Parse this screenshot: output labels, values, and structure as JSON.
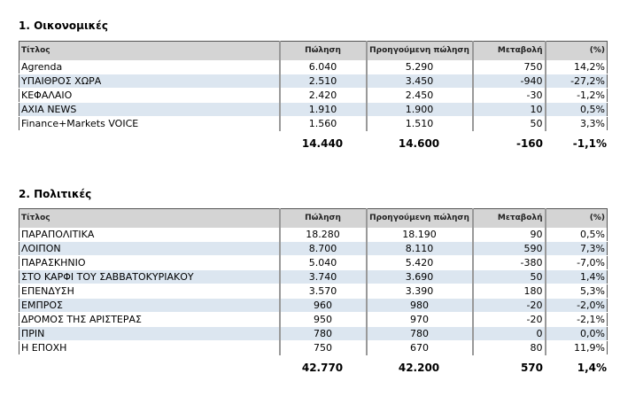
{
  "columns": {
    "title": "Τίτλος",
    "sales": "Πώληση",
    "prev": "Προηγούμενη πώληση",
    "change": "Μεταβολή",
    "pct": "(%)"
  },
  "sections": [
    {
      "heading": "1. Οικονομικές",
      "rows": [
        [
          "Agrenda",
          "6.040",
          "5.290",
          "750",
          "14,2%"
        ],
        [
          "ΥΠΑΙΘΡΟΣ ΧΩΡΑ",
          "2.510",
          "3.450",
          "-940",
          "-27,2%"
        ],
        [
          "ΚΕΦΑΛΑΙΟ",
          "2.420",
          "2.450",
          "-30",
          "-1,2%"
        ],
        [
          "AXIA NEWS",
          "1.910",
          "1.900",
          "10",
          "0,5%"
        ],
        [
          "Finance+Markets VOICE",
          "1.560",
          "1.510",
          "50",
          "3,3%"
        ]
      ],
      "totals": [
        "14.440",
        "14.600",
        "-160",
        "-1,1%"
      ]
    },
    {
      "heading": "2. Πολιτικές",
      "rows": [
        [
          "ΠΑΡΑΠΟΛΙΤΙΚΑ",
          "18.280",
          "18.190",
          "90",
          "0,5%"
        ],
        [
          "ΛΟΙΠΟΝ",
          "8.700",
          "8.110",
          "590",
          "7,3%"
        ],
        [
          "ΠΑΡΑΣΚΗΝΙΟ",
          "5.040",
          "5.420",
          "-380",
          "-7,0%"
        ],
        [
          "ΣΤΟ ΚΑΡΦΙ ΤΟΥ ΣΑΒΒΑΤΟΚΥΡΙΑΚΟΥ",
          "3.740",
          "3.690",
          "50",
          "1,4%"
        ],
        [
          "ΕΠΕΝΔΥΣΗ",
          "3.570",
          "3.390",
          "180",
          "5,3%"
        ],
        [
          "ΕΜΠΡΟΣ",
          "960",
          "980",
          "-20",
          "-2,0%"
        ],
        [
          "ΔΡΟΜΟΣ ΤΗΣ ΑΡΙΣΤΕΡΑΣ",
          "950",
          "970",
          "-20",
          "-2,1%"
        ],
        [
          "ΠΡΙΝ",
          "780",
          "780",
          "0",
          "0,0%"
        ],
        [
          "Η ΕΠΟΧΗ",
          "750",
          "670",
          "80",
          "11,9%"
        ]
      ],
      "totals": [
        "42.770",
        "42.200",
        "570",
        "1,4%"
      ]
    }
  ]
}
